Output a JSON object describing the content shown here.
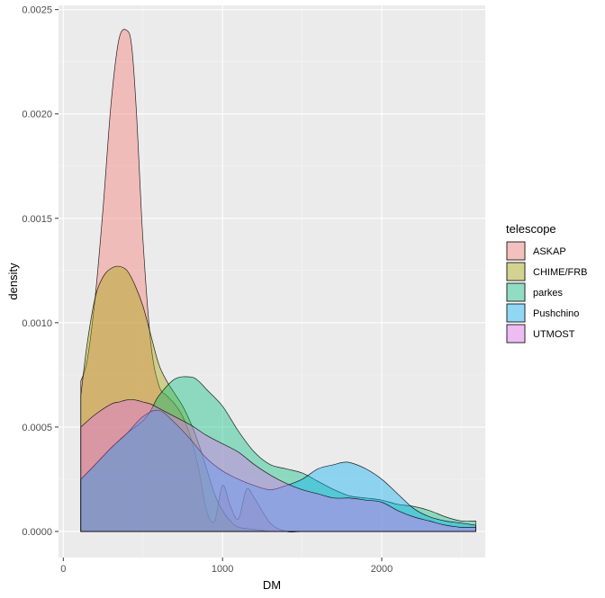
{
  "chart_data": {
    "type": "area",
    "subtype": "density",
    "xlabel": "DM",
    "ylabel": "density",
    "xlim": [
      -30,
      2650
    ],
    "ylim": [
      -0.000125,
      0.00252
    ],
    "x_ticks": [
      0,
      1000,
      2000
    ],
    "x_tick_labels": [
      "0",
      "1000",
      "2000"
    ],
    "y_ticks": [
      0,
      0.0005,
      0.001,
      0.0015,
      0.002,
      0.0025
    ],
    "y_tick_labels": [
      "0.0000",
      "0.0005",
      "0.0010",
      "0.0015",
      "0.0020",
      "0.0025"
    ],
    "legend": {
      "title": "telescope",
      "position": "right"
    },
    "series": [
      {
        "name": "ASKAP",
        "color": "#F8766D",
        "x": [
          110,
          150,
          200,
          250,
          300,
          350,
          400,
          430,
          460,
          500,
          550,
          600,
          650,
          700,
          750,
          800,
          850,
          900,
          950,
          1000,
          1050,
          1100,
          1150,
          1200,
          1300,
          1400,
          1500,
          1600,
          1700,
          1800,
          2000,
          2200,
          2400,
          2590
        ],
        "y": [
          0.00072,
          0.00082,
          0.00112,
          0.00155,
          0.00205,
          0.00236,
          0.0024,
          0.00232,
          0.002,
          0.0014,
          0.0009,
          0.0007,
          0.00065,
          0.00061,
          0.00055,
          0.00045,
          0.0003,
          0.0001,
          5e-05,
          0.00022,
          0.00012,
          6e-05,
          0.0002,
          0.00016,
          4e-05,
          0.0,
          0.0,
          0.0,
          0.0,
          0.0,
          0.0,
          0.0,
          0.0,
          0.0
        ]
      },
      {
        "name": "CHIME/FRB",
        "color": "#A3A500",
        "x": [
          110,
          150,
          200,
          250,
          300,
          350,
          400,
          450,
          500,
          550,
          600,
          650,
          700,
          750,
          800,
          850,
          900,
          950,
          1000,
          1050,
          1100,
          1200,
          1300,
          1400,
          1500,
          1600,
          1800,
          2000,
          2200,
          2400,
          2590
        ],
        "y": [
          0.00065,
          0.0009,
          0.00112,
          0.00122,
          0.00126,
          0.00127,
          0.00125,
          0.00118,
          0.00108,
          0.00094,
          0.0008,
          0.00072,
          0.00066,
          0.0006,
          0.00052,
          0.00042,
          0.0003,
          0.00018,
          0.0001,
          5e-05,
          2e-05,
          1e-05,
          0.0,
          0.0,
          0.0,
          0.0,
          0.0,
          0.0,
          0.0,
          0.0,
          0.0
        ]
      },
      {
        "name": "parkes",
        "color": "#00BF7D",
        "x": [
          110,
          200,
          300,
          400,
          500,
          550,
          600,
          700,
          800,
          850,
          900,
          1000,
          1100,
          1200,
          1300,
          1400,
          1500,
          1600,
          1700,
          1800,
          1900,
          2000,
          2100,
          2200,
          2300,
          2400,
          2500,
          2590
        ],
        "y": [
          0.00025,
          0.00032,
          0.0004,
          0.00047,
          0.00053,
          0.00058,
          0.00065,
          0.00073,
          0.00074,
          0.00072,
          0.00068,
          0.0006,
          0.00048,
          0.00038,
          0.00032,
          0.0003,
          0.00028,
          0.00024,
          0.0002,
          0.00017,
          0.00016,
          0.00015,
          0.00013,
          0.00012,
          0.0001,
          7e-05,
          5e-05,
          5e-05
        ]
      },
      {
        "name": "Pushchino",
        "color": "#00B0F6",
        "x": [
          110,
          200,
          300,
          400,
          500,
          600,
          700,
          800,
          900,
          1000,
          1100,
          1200,
          1300,
          1400,
          1500,
          1600,
          1700,
          1750,
          1800,
          1900,
          2000,
          2100,
          2200,
          2300,
          2400,
          2500,
          2590
        ],
        "y": [
          0.00025,
          0.00032,
          0.0004,
          0.00047,
          0.00055,
          0.00058,
          0.00052,
          0.00044,
          0.00035,
          0.00029,
          0.00025,
          0.00022,
          0.0002,
          0.00022,
          0.00025,
          0.0003,
          0.00032,
          0.00033,
          0.00033,
          0.0003,
          0.00025,
          0.00018,
          0.00011,
          7e-05,
          5e-05,
          4e-05,
          3e-05
        ]
      },
      {
        "name": "UTMOST",
        "color": "#E76BF3",
        "x": [
          110,
          200,
          300,
          350,
          400,
          450,
          500,
          550,
          600,
          700,
          800,
          900,
          1000,
          1100,
          1200,
          1300,
          1400,
          1500,
          1600,
          1700,
          1800,
          1900,
          2000,
          2100,
          2200,
          2300,
          2400,
          2500,
          2590
        ],
        "y": [
          0.0005,
          0.00056,
          0.00061,
          0.00062,
          0.00063,
          0.00063,
          0.00062,
          0.00061,
          0.00059,
          0.00055,
          0.00051,
          0.00046,
          0.00042,
          0.00038,
          0.00032,
          0.00027,
          0.00023,
          0.0002,
          0.00018,
          0.00016,
          0.00016,
          0.00015,
          0.00014,
          0.0001,
          7e-05,
          5e-05,
          3e-05,
          2e-05,
          2e-05
        ]
      }
    ]
  }
}
